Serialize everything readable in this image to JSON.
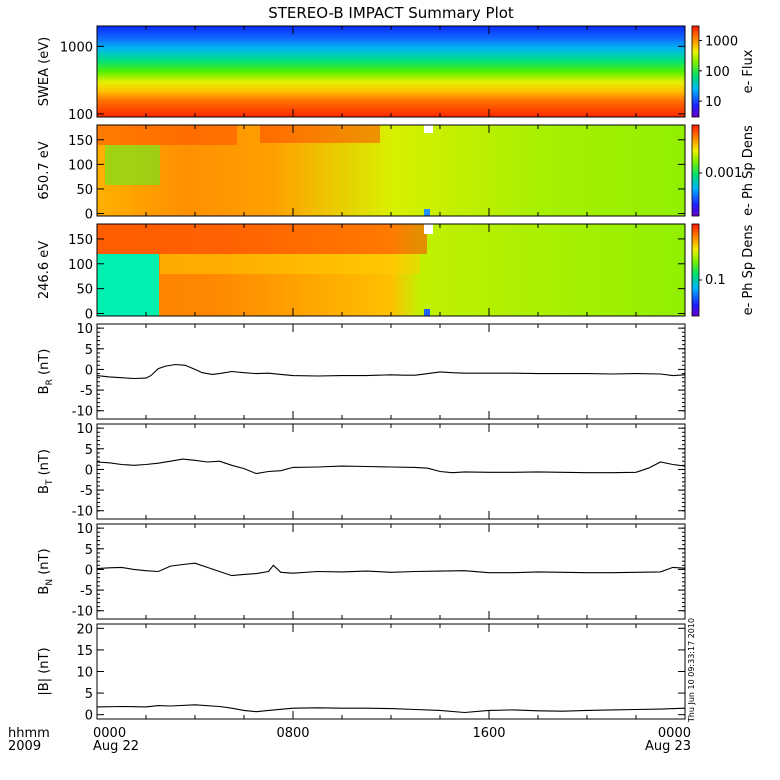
{
  "chart_data": {
    "type": "line",
    "title": "STEREO-B IMPACT Summary Plot",
    "x_axis": {
      "range_hours": [
        0,
        24
      ],
      "ticks": [
        0,
        8,
        16,
        24
      ],
      "tick_labels": [
        "0000",
        "0800",
        "1600",
        "0000"
      ],
      "date_labels": [
        "Aug 22",
        "",
        "",
        "Aug 23"
      ],
      "format_label": "hhmm",
      "year_label": "2009"
    },
    "timestamp": "Thu Jun 10 09:33:17 2010",
    "panels": [
      {
        "id": "swea",
        "type": "heatmap",
        "ylabel": "SWEA (eV)",
        "y_scale": "log",
        "y_range": [
          90,
          2000
        ],
        "y_tick_values": [
          100,
          1000
        ],
        "y_tick_labels": [
          "100",
          "1000"
        ],
        "colorbar_label": "e- Flux",
        "colorbar_scale": "log",
        "colorbar_range": [
          3,
          3000
        ],
        "colorbar_tick_values": [
          10,
          100,
          1000
        ],
        "colorbar_tick_labels": [
          "10",
          "100",
          "1000"
        ]
      },
      {
        "id": "pad650",
        "type": "heatmap",
        "ylabel": "650.7 eV",
        "y_range": [
          -5,
          180
        ],
        "y_tick_values": [
          0,
          50,
          100,
          150
        ],
        "y_tick_labels": [
          "0",
          "50",
          "100",
          "150"
        ],
        "colorbar_label": "e- Ph Sp Dens",
        "colorbar_tick_labels": [
          "0.001"
        ]
      },
      {
        "id": "pad246",
        "type": "heatmap",
        "ylabel": "246.6 eV",
        "y_range": [
          -5,
          180
        ],
        "y_tick_values": [
          0,
          50,
          100,
          150
        ],
        "y_tick_labels": [
          "0",
          "50",
          "100",
          "150"
        ],
        "colorbar_label": "e- Ph Sp Dens",
        "colorbar_tick_labels": [
          "0.1"
        ]
      },
      {
        "id": "br",
        "type": "line",
        "ylabel": "B",
        "ylabel_sub": "R",
        "ylabel_unit": " (nT)",
        "y_range": [
          -12,
          11
        ],
        "y_tick_values": [
          10,
          5,
          0,
          -5,
          -10
        ],
        "y_tick_labels": [
          "10",
          "5",
          "0",
          "-5",
          "-10"
        ],
        "series": {
          "x": [
            0,
            0.5,
            1,
            1.5,
            2,
            2.2,
            2.5,
            2.8,
            3.2,
            3.6,
            4,
            4.3,
            4.7,
            5,
            5.5,
            6,
            6.5,
            7,
            7.5,
            8,
            9,
            10,
            11,
            12,
            12.5,
            13,
            13.5,
            14,
            14.5,
            15,
            16,
            17,
            18,
            19,
            20,
            21,
            22,
            23,
            23.5,
            24
          ],
          "y": [
            -1.5,
            -1.8,
            -2.0,
            -2.2,
            -2.1,
            -1.5,
            0.2,
            0.8,
            1.2,
            1.0,
            0.0,
            -0.8,
            -1.2,
            -1.0,
            -0.5,
            -0.8,
            -1.0,
            -0.9,
            -1.2,
            -1.5,
            -1.6,
            -1.5,
            -1.5,
            -1.3,
            -1.4,
            -1.4,
            -1.0,
            -0.6,
            -0.8,
            -0.9,
            -0.9,
            -0.9,
            -1.0,
            -1.0,
            -1.0,
            -1.1,
            -1.0,
            -1.1,
            -1.5,
            -1.3
          ]
        }
      },
      {
        "id": "bt",
        "type": "line",
        "ylabel": "B",
        "ylabel_sub": "T",
        "ylabel_unit": " (nT)",
        "y_range": [
          -12,
          11
        ],
        "y_tick_values": [
          10,
          5,
          0,
          -5,
          -10
        ],
        "y_tick_labels": [
          "10",
          "5",
          "0",
          "-5",
          "-10"
        ],
        "series": {
          "x": [
            0,
            0.5,
            1,
            1.5,
            2,
            2.5,
            3,
            3.5,
            4,
            4.5,
            5,
            5.5,
            6,
            6.5,
            7,
            7.5,
            8,
            9,
            10,
            11,
            12,
            13,
            13.5,
            14,
            14.5,
            15,
            16,
            17,
            18,
            19,
            20,
            21,
            22,
            22.5,
            23,
            23.5,
            24
          ],
          "y": [
            1.8,
            1.6,
            1.2,
            1.0,
            1.2,
            1.5,
            2.0,
            2.5,
            2.2,
            1.8,
            2.0,
            1.0,
            0.2,
            -1.0,
            -0.5,
            -0.3,
            0.5,
            0.6,
            0.8,
            0.7,
            0.6,
            0.5,
            0.3,
            -0.5,
            -0.8,
            -0.6,
            -0.7,
            -0.7,
            -0.6,
            -0.7,
            -0.8,
            -0.8,
            -0.7,
            0.3,
            1.8,
            1.2,
            0.8
          ]
        }
      },
      {
        "id": "bn",
        "type": "line",
        "ylabel": "B",
        "ylabel_sub": "N",
        "ylabel_unit": " (nT)",
        "y_range": [
          -12,
          11
        ],
        "y_tick_values": [
          10,
          5,
          0,
          -5,
          -10
        ],
        "y_tick_labels": [
          "10",
          "5",
          "0",
          "-5",
          "-10"
        ],
        "series": {
          "x": [
            0,
            0.5,
            1,
            1.5,
            2,
            2.5,
            3,
            3.5,
            4,
            4.5,
            5,
            5.5,
            6,
            6.5,
            7,
            7.2,
            7.5,
            8,
            9,
            10,
            11,
            12,
            13,
            14,
            15,
            16,
            17,
            18,
            19,
            20,
            21,
            22,
            23,
            23.5,
            24
          ],
          "y": [
            0.2,
            0.4,
            0.5,
            0.0,
            -0.3,
            -0.5,
            0.8,
            1.2,
            1.5,
            0.5,
            -0.5,
            -1.5,
            -1.2,
            -1.0,
            -0.5,
            1.0,
            -0.7,
            -0.9,
            -0.5,
            -0.6,
            -0.4,
            -0.7,
            -0.5,
            -0.4,
            -0.3,
            -0.8,
            -0.8,
            -0.6,
            -0.7,
            -0.8,
            -0.8,
            -0.7,
            -0.6,
            0.5,
            0.3
          ]
        }
      },
      {
        "id": "bmag",
        "type": "line",
        "ylabel": "|B| (nT)",
        "y_range": [
          -1,
          21
        ],
        "y_tick_values": [
          0,
          5,
          10,
          15,
          20
        ],
        "y_tick_labels": [
          "0",
          "5",
          "10",
          "15",
          "20"
        ],
        "series": {
          "x": [
            0,
            1,
            2,
            2.5,
            3,
            4,
            5,
            5.5,
            6,
            6.5,
            7,
            8,
            9,
            10,
            11,
            12,
            13,
            14,
            15,
            16,
            17,
            18,
            19,
            20,
            21,
            22,
            23,
            24
          ],
          "y": [
            1.8,
            1.9,
            1.8,
            2.1,
            2.0,
            2.3,
            1.9,
            1.5,
            1.0,
            0.7,
            1.0,
            1.5,
            1.6,
            1.5,
            1.5,
            1.4,
            1.2,
            1.0,
            0.5,
            1.0,
            1.1,
            0.9,
            0.8,
            1.0,
            1.1,
            1.2,
            1.3,
            1.5
          ]
        }
      }
    ]
  }
}
